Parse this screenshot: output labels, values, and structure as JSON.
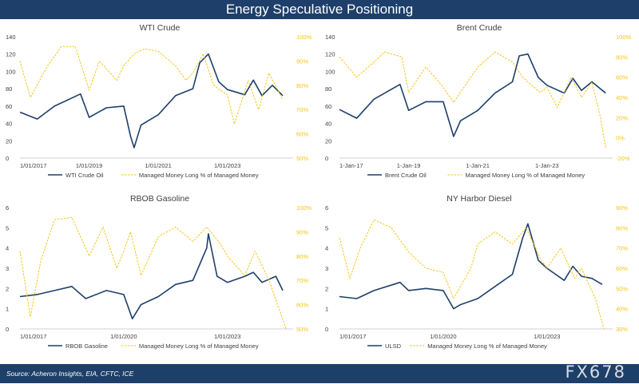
{
  "page": {
    "title": "Energy Speculative Positioning",
    "source": "Source: Acheron Insights, EIA, CFTC, ICE",
    "watermark": "FX678"
  },
  "colors": {
    "price": "#1d3f6a",
    "positioning": "#f5c518",
    "header_bg": "#1d3f6a",
    "text": "#404040",
    "axis": "#d0d0d0"
  },
  "chart_data": [
    {
      "type": "line",
      "title": "WTI Crude",
      "x": [
        "2017",
        "2018",
        "2019",
        "2020",
        "2020.25",
        "2020.3",
        "2021",
        "2022",
        "2022.4",
        "2023",
        "2024",
        "2024.6"
      ],
      "xtick_labels": [
        "1/01/2017",
        "1/01/2019",
        "1/01/2021",
        "1/01/2023"
      ],
      "xlim": [
        2017,
        2024.9
      ],
      "ylim_left": [
        0,
        140
      ],
      "yticks_left": [
        "0",
        "20",
        "40",
        "60",
        "80",
        "100",
        "120",
        "140"
      ],
      "ylim_right": [
        50,
        100
      ],
      "yticks_right": [
        "50%",
        "60%",
        "70%",
        "80%",
        "90%",
        "100%"
      ],
      "series": [
        {
          "name": "WTI Crude Oil",
          "axis": "left",
          "points": [
            [
              2017,
              53
            ],
            [
              2017.5,
              45
            ],
            [
              2018,
              60
            ],
            [
              2018.75,
              74
            ],
            [
              2019,
              47
            ],
            [
              2019.5,
              58
            ],
            [
              2020,
              60
            ],
            [
              2020.2,
              25
            ],
            [
              2020.3,
              12
            ],
            [
              2020.5,
              38
            ],
            [
              2021,
              50
            ],
            [
              2021.5,
              72
            ],
            [
              2022,
              80
            ],
            [
              2022.2,
              110
            ],
            [
              2022.45,
              120
            ],
            [
              2022.75,
              88
            ],
            [
              2023,
              79
            ],
            [
              2023.5,
              73
            ],
            [
              2023.75,
              90
            ],
            [
              2024,
              72
            ],
            [
              2024.3,
              84
            ],
            [
              2024.6,
              72
            ]
          ]
        },
        {
          "name": "Managed Money Long % of Managed Money",
          "axis": "right",
          "points": [
            [
              2017,
              90
            ],
            [
              2017.3,
              75
            ],
            [
              2017.8,
              88
            ],
            [
              2018.2,
              96
            ],
            [
              2018.6,
              96
            ],
            [
              2019,
              78
            ],
            [
              2019.3,
              90
            ],
            [
              2019.8,
              82
            ],
            [
              2020,
              88
            ],
            [
              2020.3,
              93
            ],
            [
              2020.6,
              95
            ],
            [
              2021,
              94
            ],
            [
              2021.5,
              88
            ],
            [
              2021.8,
              82
            ],
            [
              2022,
              85
            ],
            [
              2022.3,
              93
            ],
            [
              2022.6,
              80
            ],
            [
              2023,
              76
            ],
            [
              2023.2,
              64
            ],
            [
              2023.6,
              82
            ],
            [
              2023.9,
              70
            ],
            [
              2024.2,
              85
            ],
            [
              2024.6,
              74
            ]
          ]
        }
      ]
    },
    {
      "type": "line",
      "title": "Brent Crude",
      "x": [
        "2017",
        "2018",
        "2019",
        "2020",
        "2020.25",
        "2021",
        "2022",
        "2022.4",
        "2023",
        "2024",
        "2024.7"
      ],
      "xtick_labels": [
        "1-Jan-17",
        "1-Jan-19",
        "1-Jan-21",
        "1-Jan-23"
      ],
      "xlim": [
        2017,
        2024.9
      ],
      "ylim_left": [
        0,
        140
      ],
      "yticks_left": [
        "0",
        "20",
        "40",
        "60",
        "80",
        "100",
        "120",
        "140"
      ],
      "ylim_right": [
        -20,
        100
      ],
      "yticks_right": [
        "-20%",
        "0%",
        "20%",
        "40%",
        "60%",
        "80%",
        "100%"
      ],
      "series": [
        {
          "name": "Brent Crude Oil",
          "axis": "left",
          "points": [
            [
              2017,
              56
            ],
            [
              2017.5,
              46
            ],
            [
              2018,
              68
            ],
            [
              2018.75,
              85
            ],
            [
              2019,
              55
            ],
            [
              2019.5,
              65
            ],
            [
              2020,
              65
            ],
            [
              2020.3,
              25
            ],
            [
              2020.5,
              43
            ],
            [
              2021,
              55
            ],
            [
              2021.5,
              75
            ],
            [
              2022,
              88
            ],
            [
              2022.2,
              118
            ],
            [
              2022.45,
              120
            ],
            [
              2022.75,
              93
            ],
            [
              2023,
              84
            ],
            [
              2023.5,
              75
            ],
            [
              2023.75,
              92
            ],
            [
              2024,
              78
            ],
            [
              2024.3,
              88
            ],
            [
              2024.7,
              75
            ]
          ]
        },
        {
          "name": "Managed Money Long % of Managed Money",
          "axis": "right",
          "points": [
            [
              2017,
              80
            ],
            [
              2017.5,
              60
            ],
            [
              2018,
              75
            ],
            [
              2018.3,
              85
            ],
            [
              2018.8,
              80
            ],
            [
              2019,
              45
            ],
            [
              2019.5,
              70
            ],
            [
              2020,
              50
            ],
            [
              2020.3,
              35
            ],
            [
              2020.8,
              60
            ],
            [
              2021,
              70
            ],
            [
              2021.5,
              85
            ],
            [
              2022,
              75
            ],
            [
              2022.3,
              60
            ],
            [
              2022.8,
              45
            ],
            [
              2023,
              50
            ],
            [
              2023.3,
              30
            ],
            [
              2023.7,
              60
            ],
            [
              2024,
              40
            ],
            [
              2024.3,
              55
            ],
            [
              2024.55,
              20
            ],
            [
              2024.7,
              -10
            ]
          ]
        }
      ]
    },
    {
      "type": "line",
      "title": "RBOB Gasoline",
      "x": [
        "2017",
        "2018",
        "2019",
        "2020",
        "2020.25",
        "2021",
        "2022",
        "2022.4",
        "2023",
        "2024",
        "2024.6"
      ],
      "xtick_labels": [
        "1/01/2017",
        "1/01/2020",
        "1/01/2023"
      ],
      "xlim": [
        2017,
        2024.9
      ],
      "ylim_left": [
        0,
        6
      ],
      "yticks_left": [
        "0",
        "1",
        "2",
        "3",
        "4",
        "5",
        "6"
      ],
      "ylim_right": [
        50,
        100
      ],
      "yticks_right": [
        "50%",
        "60%",
        "70%",
        "80%",
        "90%",
        "100%"
      ],
      "series": [
        {
          "name": "RBOB Gasoline",
          "axis": "left",
          "points": [
            [
              2017,
              1.6
            ],
            [
              2017.5,
              1.7
            ],
            [
              2018,
              1.9
            ],
            [
              2018.5,
              2.1
            ],
            [
              2018.9,
              1.5
            ],
            [
              2019.5,
              1.9
            ],
            [
              2020,
              1.7
            ],
            [
              2020.25,
              0.5
            ],
            [
              2020.5,
              1.2
            ],
            [
              2021,
              1.6
            ],
            [
              2021.5,
              2.2
            ],
            [
              2022,
              2.4
            ],
            [
              2022.4,
              4.0
            ],
            [
              2022.45,
              4.7
            ],
            [
              2022.7,
              2.6
            ],
            [
              2023,
              2.3
            ],
            [
              2023.5,
              2.6
            ],
            [
              2023.75,
              2.8
            ],
            [
              2024,
              2.3
            ],
            [
              2024.4,
              2.6
            ],
            [
              2024.6,
              1.9
            ]
          ]
        },
        {
          "name": "Managed Money Long % of Managed Money",
          "axis": "right",
          "points": [
            [
              2017,
              82
            ],
            [
              2017.3,
              55
            ],
            [
              2017.6,
              78
            ],
            [
              2018,
              95
            ],
            [
              2018.5,
              96
            ],
            [
              2019,
              80
            ],
            [
              2019.4,
              92
            ],
            [
              2019.8,
              75
            ],
            [
              2020,
              82
            ],
            [
              2020.2,
              90
            ],
            [
              2020.5,
              72
            ],
            [
              2021,
              88
            ],
            [
              2021.5,
              92
            ],
            [
              2022,
              86
            ],
            [
              2022.4,
              92
            ],
            [
              2022.8,
              85
            ],
            [
              2023,
              80
            ],
            [
              2023.5,
              72
            ],
            [
              2023.8,
              82
            ],
            [
              2024.2,
              70
            ],
            [
              2024.5,
              58
            ],
            [
              2024.7,
              50
            ]
          ]
        }
      ]
    },
    {
      "type": "line",
      "title": "NY Harbor Diesel",
      "x": [
        "2017",
        "2018",
        "2019",
        "2020",
        "2020.25",
        "2021",
        "2022",
        "2022.4",
        "2023",
        "2024",
        "2024.6"
      ],
      "xtick_labels": [
        "1/01/2017",
        "1/01/2020",
        "1/01/2023"
      ],
      "xlim": [
        2017,
        2024.9
      ],
      "ylim_left": [
        0,
        6
      ],
      "yticks_left": [
        "0",
        "1",
        "2",
        "3",
        "4",
        "5",
        "6"
      ],
      "ylim_right": [
        30,
        90
      ],
      "yticks_right": [
        "30%",
        "40%",
        "50%",
        "60%",
        "70%",
        "80%",
        "90%"
      ],
      "series": [
        {
          "name": "ULSD",
          "axis": "left",
          "points": [
            [
              2017,
              1.6
            ],
            [
              2017.5,
              1.5
            ],
            [
              2018,
              1.9
            ],
            [
              2018.75,
              2.3
            ],
            [
              2019,
              1.9
            ],
            [
              2019.5,
              2.0
            ],
            [
              2020,
              1.9
            ],
            [
              2020.3,
              1.0
            ],
            [
              2020.5,
              1.2
            ],
            [
              2021,
              1.5
            ],
            [
              2021.5,
              2.1
            ],
            [
              2022,
              2.7
            ],
            [
              2022.3,
              4.5
            ],
            [
              2022.45,
              5.2
            ],
            [
              2022.75,
              3.4
            ],
            [
              2023,
              3.0
            ],
            [
              2023.5,
              2.4
            ],
            [
              2023.75,
              3.1
            ],
            [
              2024,
              2.6
            ],
            [
              2024.3,
              2.5
            ],
            [
              2024.6,
              2.2
            ]
          ]
        },
        {
          "name": "Managed Money Long % of Managed Money",
          "axis": "right",
          "points": [
            [
              2017,
              75
            ],
            [
              2017.3,
              55
            ],
            [
              2017.6,
              70
            ],
            [
              2018,
              84
            ],
            [
              2018.5,
              80
            ],
            [
              2019,
              68
            ],
            [
              2019.5,
              60
            ],
            [
              2020,
              58
            ],
            [
              2020.3,
              45
            ],
            [
              2020.8,
              60
            ],
            [
              2021,
              72
            ],
            [
              2021.5,
              78
            ],
            [
              2022,
              72
            ],
            [
              2022.4,
              80
            ],
            [
              2022.8,
              65
            ],
            [
              2023,
              60
            ],
            [
              2023.4,
              70
            ],
            [
              2023.8,
              55
            ],
            [
              2024,
              60
            ],
            [
              2024.4,
              45
            ],
            [
              2024.65,
              30
            ]
          ]
        }
      ]
    }
  ]
}
